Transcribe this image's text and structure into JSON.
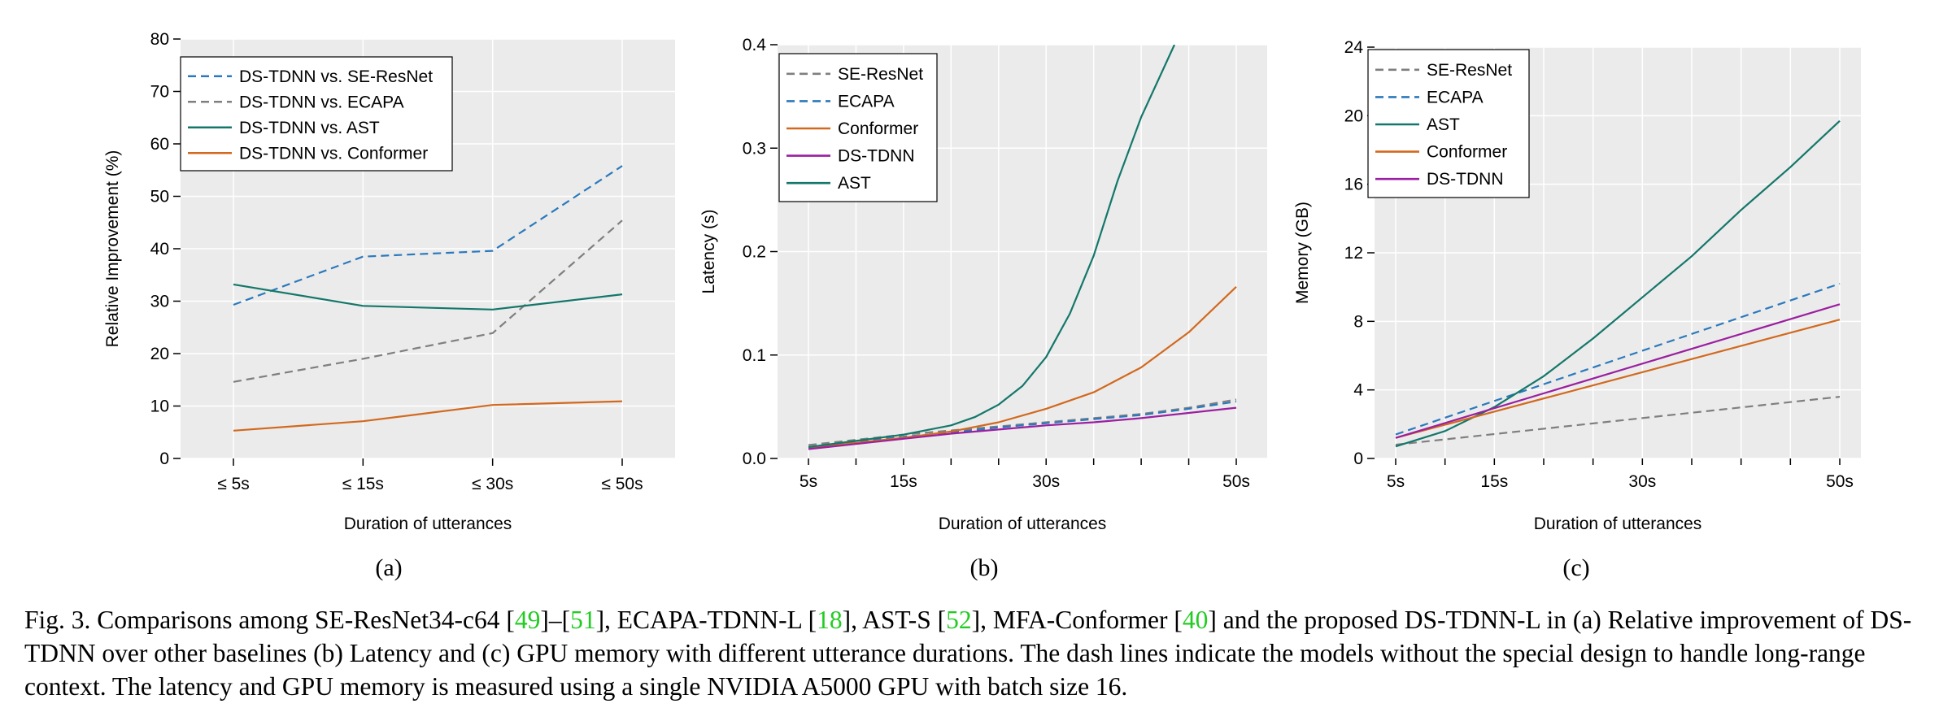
{
  "colors": {
    "plot_bg": "#ebebeb",
    "grid": "#ffffff",
    "blue": "#2b79bc",
    "gray": "#7f7f7f",
    "teal": "#14776a",
    "orange": "#d2691e",
    "purple": "#9b1fa0",
    "ref_green": "#22cc22"
  },
  "chart_data": [
    {
      "panel": "(a)",
      "type": "line",
      "xlabel": "Duration of utterances",
      "ylabel": "Relative Improvement (%)",
      "categories": [
        "≤ 5s",
        "≤ 15s",
        "≤ 30s",
        "≤ 50s"
      ],
      "ylim": [
        0,
        80
      ],
      "yticks": [
        "0",
        "10",
        "20",
        "30",
        "40",
        "50",
        "60",
        "70",
        "80"
      ],
      "legend_position": "top-left",
      "grid": true,
      "series": [
        {
          "name": "DS-TDNN vs. SE-ResNet",
          "color": "blue",
          "dash": true,
          "values": [
            29.3,
            38.5,
            39.6,
            55.8
          ]
        },
        {
          "name": "DS-TDNN vs. ECAPA",
          "color": "gray",
          "dash": true,
          "values": [
            14.6,
            19.0,
            23.9,
            45.4
          ]
        },
        {
          "name": "DS-TDNN vs. AST",
          "color": "teal",
          "dash": false,
          "values": [
            33.2,
            29.1,
            28.4,
            31.3
          ]
        },
        {
          "name": "DS-TDNN vs. Conformer",
          "color": "orange",
          "dash": false,
          "values": [
            5.3,
            7.1,
            10.2,
            10.9
          ]
        }
      ]
    },
    {
      "panel": "(b)",
      "type": "line",
      "xlabel": "Duration of utterances",
      "ylabel": "Latency (s)",
      "xlim": [
        5,
        50
      ],
      "xticks": [
        "5s",
        "15s",
        "30s",
        "50s"
      ],
      "ylim": [
        0,
        0.4
      ],
      "yticks": [
        "0.0",
        "0.1",
        "0.2",
        "0.3",
        "0.4"
      ],
      "legend_position": "top-left",
      "grid": true,
      "series": [
        {
          "name": "SE-ResNet",
          "color": "gray",
          "dash": true,
          "x": [
            5,
            10,
            15,
            20,
            25,
            30,
            35,
            40,
            45,
            50
          ],
          "values": [
            0.013,
            0.018,
            0.023,
            0.027,
            0.031,
            0.035,
            0.039,
            0.043,
            0.049,
            0.057
          ]
        },
        {
          "name": "ECAPA",
          "color": "blue",
          "dash": true,
          "x": [
            5,
            10,
            15,
            20,
            25,
            30,
            35,
            40,
            45,
            50
          ],
          "values": [
            0.011,
            0.016,
            0.021,
            0.025,
            0.03,
            0.034,
            0.038,
            0.042,
            0.048,
            0.055
          ]
        },
        {
          "name": "Conformer",
          "color": "orange",
          "dash": false,
          "x": [
            5,
            10,
            15,
            20,
            25,
            30,
            35,
            40,
            45,
            50
          ],
          "values": [
            0.01,
            0.015,
            0.02,
            0.026,
            0.035,
            0.048,
            0.064,
            0.088,
            0.122,
            0.166
          ]
        },
        {
          "name": "DS-TDNN",
          "color": "purple",
          "dash": false,
          "x": [
            5,
            10,
            15,
            20,
            25,
            30,
            35,
            40,
            45,
            50
          ],
          "values": [
            0.009,
            0.014,
            0.019,
            0.024,
            0.028,
            0.032,
            0.035,
            0.039,
            0.044,
            0.049
          ]
        },
        {
          "name": "AST",
          "color": "teal",
          "dash": false,
          "x": [
            5,
            10,
            15,
            20,
            22.5,
            25,
            27.5,
            30,
            32.5,
            35,
            37.5,
            40,
            42.5,
            43.5
          ],
          "values": [
            0.011,
            0.017,
            0.023,
            0.032,
            0.04,
            0.052,
            0.07,
            0.098,
            0.14,
            0.196,
            0.268,
            0.33,
            0.38,
            0.4
          ]
        }
      ]
    },
    {
      "panel": "(c)",
      "type": "line",
      "xlabel": "Duration of utterances",
      "ylabel": "Memory (GB)",
      "xlim": [
        5,
        50
      ],
      "xticks": [
        "5s",
        "15s",
        "30s",
        "50s"
      ],
      "ylim": [
        0,
        24
      ],
      "yticks": [
        "0",
        "4",
        "8",
        "12",
        "16",
        "20",
        "24"
      ],
      "legend_position": "top-left",
      "grid": true,
      "series": [
        {
          "name": "SE-ResNet",
          "color": "gray",
          "dash": true,
          "x": [
            5,
            50
          ],
          "values": [
            0.8,
            3.6
          ]
        },
        {
          "name": "ECAPA",
          "color": "blue",
          "dash": true,
          "x": [
            5,
            50
          ],
          "values": [
            1.4,
            10.2
          ]
        },
        {
          "name": "AST",
          "color": "teal",
          "dash": false,
          "x": [
            5,
            10,
            15,
            20,
            25,
            30,
            35,
            40,
            45,
            50
          ],
          "values": [
            0.7,
            1.6,
            3.0,
            4.8,
            7.0,
            9.4,
            11.8,
            14.5,
            17.0,
            19.7
          ]
        },
        {
          "name": "Conformer",
          "color": "orange",
          "dash": false,
          "x": [
            5,
            50
          ],
          "values": [
            1.2,
            8.1
          ]
        },
        {
          "name": "DS-TDNN",
          "color": "purple",
          "dash": false,
          "x": [
            5,
            50
          ],
          "values": [
            1.2,
            9.0
          ]
        }
      ]
    }
  ],
  "caption": {
    "segments": [
      {
        "t": "Fig. 3.  Comparisons among SE-ResNet34-c64 [",
        "ref": false
      },
      {
        "t": "49",
        "ref": true
      },
      {
        "t": "]–[",
        "ref": false
      },
      {
        "t": "51",
        "ref": true
      },
      {
        "t": "], ECAPA-TDNN-L [",
        "ref": false
      },
      {
        "t": "18",
        "ref": true
      },
      {
        "t": "], AST-S [",
        "ref": false
      },
      {
        "t": "52",
        "ref": true
      },
      {
        "t": "], MFA-Conformer [",
        "ref": false
      },
      {
        "t": "40",
        "ref": true
      },
      {
        "t": "] and the proposed DS-TDNN-L in (a) Relative improvement of DS-TDNN over other baselines (b) Latency and (c) GPU memory with different utterance durations. The dash lines indicate the models without the special design to handle long-range context. The latency and GPU memory is measured using a single NVIDIA A5000 GPU with batch size 16.",
        "ref": false
      }
    ]
  }
}
